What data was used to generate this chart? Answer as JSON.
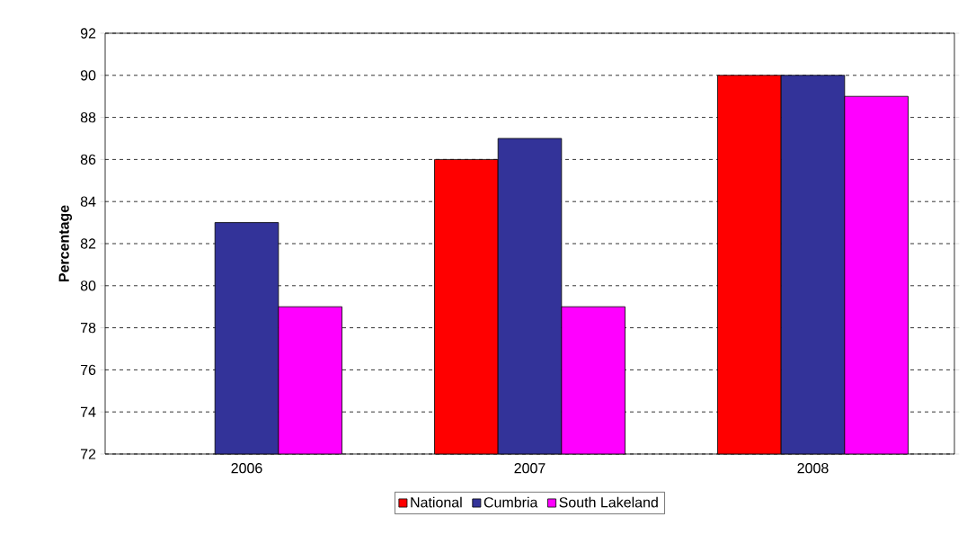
{
  "chart_data": {
    "type": "bar",
    "ylabel": "Percentage",
    "categories": [
      "2006",
      "2007",
      "2008"
    ],
    "series": [
      {
        "name": "National",
        "color": "#ff0000",
        "values": [
          null,
          86,
          90
        ]
      },
      {
        "name": "Cumbria",
        "color": "#333399",
        "values": [
          83,
          87,
          90
        ]
      },
      {
        "name": "South Lakeland",
        "color": "#ff00ff",
        "values": [
          79,
          79,
          89
        ]
      }
    ],
    "ylim": [
      72,
      92
    ],
    "yticks": [
      72,
      74,
      76,
      78,
      80,
      82,
      84,
      86,
      88,
      90,
      92
    ],
    "grid": "y",
    "legend": "bottom"
  }
}
